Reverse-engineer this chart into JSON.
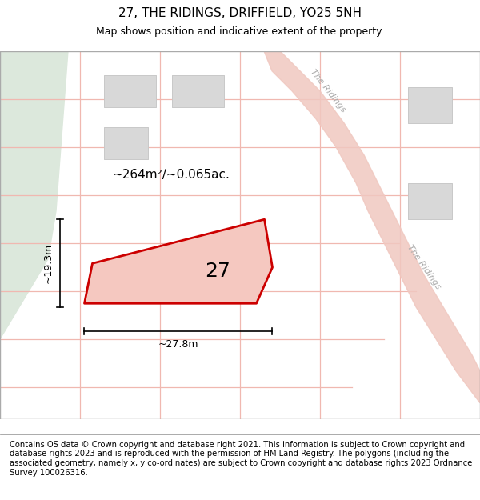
{
  "title": "27, THE RIDINGS, DRIFFIELD, YO25 5NH",
  "subtitle": "Map shows position and indicative extent of the property.",
  "footer": "Contains OS data © Crown copyright and database right 2021. This information is subject to Crown copyright and database rights 2023 and is reproduced with the permission of HM Land Registry. The polygons (including the associated geometry, namely x, y co-ordinates) are subject to Crown copyright and database rights 2023 Ordnance Survey 100026316.",
  "map_bg": "#f0f0f0",
  "left_green_color": "#dce8dc",
  "road_line_color": "#f0b8b0",
  "road_fill_color": "#f0c8c0",
  "building_fill": "#d8d8d8",
  "building_edge": "#c8c8c8",
  "prop_fill": "#f5c8c0",
  "prop_edge": "#cc0000",
  "prop_lw": 2.0,
  "label_27": "27",
  "area_label": "~264m²/~0.065ac.",
  "width_label": "~27.8m",
  "height_label": "~19.3m",
  "road_label_color": "#aaaaaa",
  "title_fontsize": 11,
  "subtitle_fontsize": 9,
  "footer_fontsize": 7.2,
  "dim_fontsize": 9,
  "area_fontsize": 11,
  "label_fontsize": 18
}
